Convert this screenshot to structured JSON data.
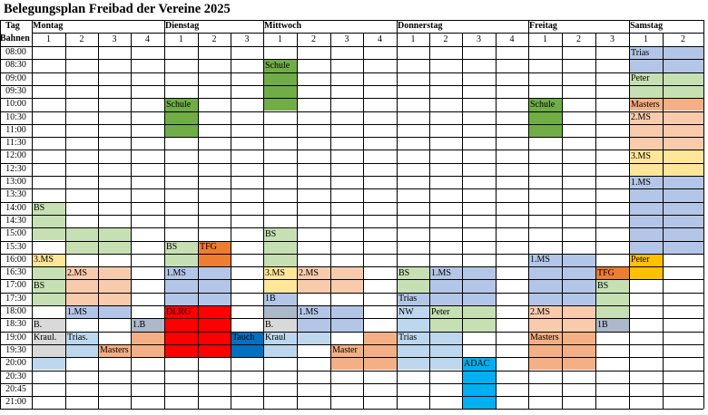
{
  "title": "Belegungsplan Freibad der Vereine 2025",
  "corner_top": "Tag",
  "corner_bottom": "Bahnen",
  "days": [
    {
      "name": "Montag",
      "lanes": 4
    },
    {
      "name": "Dienstag",
      "lanes": 3
    },
    {
      "name": "Mittwoch",
      "lanes": 4
    },
    {
      "name": "Donnerstag",
      "lanes": 4
    },
    {
      "name": "Freitag",
      "lanes": 3
    },
    {
      "name": "Samstag",
      "lanes": 2
    }
  ],
  "times": [
    "08:00",
    "08:30",
    "09:00",
    "09:30",
    "10:00",
    "10:30",
    "11:00",
    "11:30",
    "12:00",
    "12:30",
    "13:00",
    "13:30",
    "14:00",
    "14:30",
    "15:00",
    "15:30",
    "16:00",
    "16:30",
    "17:00",
    "17:30",
    "18:00",
    "18:30",
    "19:00",
    "19:30",
    "20:00",
    "20:30",
    "20:45",
    "21:00"
  ],
  "colors": {
    "green_dark": "#70ad47",
    "green_light": "#c6e0b4",
    "blue": "#b4c6e7",
    "blue_light": "#bdd7ee",
    "peach": "#f8cbad",
    "orange": "#f4b084",
    "orange_dark": "#ed7d31",
    "yellow": "#ffe699",
    "gold": "#ffc000",
    "red": "#ff0000",
    "navy": "#0070c0",
    "sky": "#00b0f0",
    "grey": "#d9d9d9",
    "slate": "#adb9ca"
  },
  "bookings": [
    {
      "day": 0,
      "lane": 0,
      "start": 12,
      "end": 15,
      "color": "green_light",
      "label": "BS"
    },
    {
      "day": 0,
      "lane": 1,
      "start": 14,
      "end": 16,
      "color": "green_light",
      "label": ""
    },
    {
      "day": 0,
      "lane": 2,
      "start": 14,
      "end": 16,
      "color": "green_light",
      "label": ""
    },
    {
      "day": 0,
      "lane": 0,
      "start": 16,
      "end": 17,
      "color": "yellow",
      "label": "3.MS"
    },
    {
      "day": 0,
      "lane": 0,
      "start": 17,
      "end": 18,
      "color": "green_light",
      "label": ""
    },
    {
      "day": 0,
      "lane": 0,
      "start": 18,
      "end": 20,
      "color": "green_light",
      "label": "BS"
    },
    {
      "day": 0,
      "lane": 1,
      "start": 17,
      "end": 20,
      "color": "peach",
      "label": "2.MS"
    },
    {
      "day": 0,
      "lane": 2,
      "start": 17,
      "end": 20,
      "color": "peach",
      "label": ""
    },
    {
      "day": 0,
      "lane": 1,
      "start": 20,
      "end": 21,
      "color": "blue",
      "label": "1.MS"
    },
    {
      "day": 0,
      "lane": 2,
      "start": 20,
      "end": 21,
      "color": "blue",
      "label": ""
    },
    {
      "day": 0,
      "lane": 0,
      "start": 21,
      "end": 22,
      "color": "grey",
      "label": "B."
    },
    {
      "day": 0,
      "lane": 3,
      "start": 21,
      "end": 22,
      "color": "slate",
      "label": "1.B"
    },
    {
      "day": 0,
      "lane": 0,
      "start": 22,
      "end": 23,
      "color": "grey",
      "label": "Kraul."
    },
    {
      "day": 0,
      "lane": 1,
      "start": 22,
      "end": 24,
      "color": "blue_light",
      "label": "Trias."
    },
    {
      "day": 0,
      "lane": 0,
      "start": 23,
      "end": 24,
      "color": "grey",
      "label": ""
    },
    {
      "day": 0,
      "lane": 2,
      "start": 23,
      "end": 24,
      "color": "orange",
      "label": "Masters"
    },
    {
      "day": 0,
      "lane": 3,
      "start": 22,
      "end": 24,
      "color": "orange",
      "label": ""
    },
    {
      "day": 0,
      "lane": 0,
      "start": 24,
      "end": 25,
      "color": "blue_light",
      "label": ""
    },
    {
      "day": 1,
      "lane": 0,
      "start": 4,
      "end": 7,
      "color": "green_dark",
      "label": "Schule"
    },
    {
      "day": 1,
      "lane": 0,
      "start": 15,
      "end": 17,
      "color": "green_light",
      "label": "BS"
    },
    {
      "day": 1,
      "lane": 1,
      "start": 15,
      "end": 17,
      "color": "orange_dark",
      "label": "TFG"
    },
    {
      "day": 1,
      "lane": 0,
      "start": 17,
      "end": 20,
      "color": "blue",
      "label": "1.MS"
    },
    {
      "day": 1,
      "lane": 1,
      "start": 17,
      "end": 20,
      "color": "blue",
      "label": ""
    },
    {
      "day": 1,
      "lane": 0,
      "start": 20,
      "end": 24,
      "color": "red",
      "label": "DLRG"
    },
    {
      "day": 1,
      "lane": 1,
      "start": 20,
      "end": 24,
      "color": "red",
      "label": ""
    },
    {
      "day": 1,
      "lane": 2,
      "start": 22,
      "end": 24,
      "color": "navy",
      "label": "Tauch"
    },
    {
      "day": 2,
      "lane": 0,
      "start": 1,
      "end": 5,
      "color": "green_dark",
      "label": "Schule"
    },
    {
      "day": 2,
      "lane": 0,
      "start": 14,
      "end": 17,
      "color": "green_light",
      "label": "BS"
    },
    {
      "day": 2,
      "lane": 0,
      "start": 17,
      "end": 19,
      "color": "yellow",
      "label": "3.MS"
    },
    {
      "day": 2,
      "lane": 1,
      "start": 17,
      "end": 19,
      "color": "peach",
      "label": "2.MS"
    },
    {
      "day": 2,
      "lane": 2,
      "start": 17,
      "end": 19,
      "color": "peach",
      "label": ""
    },
    {
      "day": 2,
      "lane": 0,
      "start": 19,
      "end": 20,
      "color": "blue",
      "label": "1B"
    },
    {
      "day": 2,
      "lane": 0,
      "start": 20,
      "end": 21,
      "color": "slate",
      "label": ""
    },
    {
      "day": 2,
      "lane": 1,
      "start": 20,
      "end": 22,
      "color": "blue",
      "label": "1.MS"
    },
    {
      "day": 2,
      "lane": 2,
      "start": 20,
      "end": 22,
      "color": "blue",
      "label": ""
    },
    {
      "day": 2,
      "lane": 0,
      "start": 21,
      "end": 22,
      "color": "grey",
      "label": "B."
    },
    {
      "day": 2,
      "lane": 0,
      "start": 22,
      "end": 24,
      "color": "blue_light",
      "label": "Kraul"
    },
    {
      "day": 2,
      "lane": 1,
      "start": 22,
      "end": 23,
      "color": "blue_light",
      "label": ""
    },
    {
      "day": 2,
      "lane": 2,
      "start": 23,
      "end": 25,
      "color": "orange",
      "label": "Master"
    },
    {
      "day": 2,
      "lane": 3,
      "start": 22,
      "end": 25,
      "color": "orange",
      "label": ""
    },
    {
      "day": 3,
      "lane": 0,
      "start": 17,
      "end": 19,
      "color": "green_light",
      "label": "BS"
    },
    {
      "day": 3,
      "lane": 1,
      "start": 17,
      "end": 20,
      "color": "blue",
      "label": "1.MS"
    },
    {
      "day": 3,
      "lane": 2,
      "start": 17,
      "end": 20,
      "color": "blue",
      "label": ""
    },
    {
      "day": 3,
      "lane": 0,
      "start": 19,
      "end": 20,
      "color": "blue",
      "label": "Trias"
    },
    {
      "day": 3,
      "lane": 0,
      "start": 20,
      "end": 22,
      "color": "blue_light",
      "label": "NW"
    },
    {
      "day": 3,
      "lane": 1,
      "start": 20,
      "end": 22,
      "color": "green_light",
      "label": "Peter"
    },
    {
      "day": 3,
      "lane": 2,
      "start": 20,
      "end": 22,
      "color": "green_light",
      "label": ""
    },
    {
      "day": 3,
      "lane": 0,
      "start": 22,
      "end": 25,
      "color": "blue_light",
      "label": "Trias"
    },
    {
      "day": 3,
      "lane": 1,
      "start": 22,
      "end": 25,
      "color": "blue_light",
      "label": ""
    },
    {
      "day": 3,
      "lane": 2,
      "start": 24,
      "end": 28,
      "color": "sky",
      "label": "ADAC"
    },
    {
      "day": 4,
      "lane": 0,
      "start": 4,
      "end": 7,
      "color": "green_dark",
      "label": "Schule"
    },
    {
      "day": 4,
      "lane": 0,
      "start": 16,
      "end": 20,
      "color": "blue",
      "label": "1.MS"
    },
    {
      "day": 4,
      "lane": 1,
      "start": 16,
      "end": 20,
      "color": "blue",
      "label": ""
    },
    {
      "day": 4,
      "lane": 2,
      "start": 17,
      "end": 18,
      "color": "orange_dark",
      "label": "TFG"
    },
    {
      "day": 4,
      "lane": 2,
      "start": 18,
      "end": 20,
      "color": "green_light",
      "label": "BS"
    },
    {
      "day": 4,
      "lane": 0,
      "start": 20,
      "end": 22,
      "color": "peach",
      "label": "2.MS"
    },
    {
      "day": 4,
      "lane": 1,
      "start": 20,
      "end": 22,
      "color": "peach",
      "label": ""
    },
    {
      "day": 4,
      "lane": 2,
      "start": 20,
      "end": 21,
      "color": "green_light",
      "label": ""
    },
    {
      "day": 4,
      "lane": 2,
      "start": 21,
      "end": 22,
      "color": "slate",
      "label": "1B"
    },
    {
      "day": 4,
      "lane": 0,
      "start": 22,
      "end": 25,
      "color": "orange",
      "label": "Masters"
    },
    {
      "day": 4,
      "lane": 1,
      "start": 22,
      "end": 25,
      "color": "orange",
      "label": ""
    },
    {
      "day": 5,
      "lane": 0,
      "start": 0,
      "end": 2,
      "color": "blue",
      "label": "Trias"
    },
    {
      "day": 5,
      "lane": 1,
      "start": 0,
      "end": 2,
      "color": "blue",
      "label": ""
    },
    {
      "day": 5,
      "lane": 0,
      "start": 2,
      "end": 4,
      "color": "green_light",
      "label": "Peter"
    },
    {
      "day": 5,
      "lane": 1,
      "start": 2,
      "end": 4,
      "color": "green_light",
      "label": ""
    },
    {
      "day": 5,
      "lane": 0,
      "start": 4,
      "end": 5,
      "color": "orange",
      "label": "Masters"
    },
    {
      "day": 5,
      "lane": 1,
      "start": 4,
      "end": 5,
      "color": "orange",
      "label": ""
    },
    {
      "day": 5,
      "lane": 0,
      "start": 5,
      "end": 8,
      "color": "peach",
      "label": "2.MS"
    },
    {
      "day": 5,
      "lane": 1,
      "start": 5,
      "end": 8,
      "color": "peach",
      "label": ""
    },
    {
      "day": 5,
      "lane": 0,
      "start": 8,
      "end": 10,
      "color": "yellow",
      "label": "3.MS"
    },
    {
      "day": 5,
      "lane": 1,
      "start": 8,
      "end": 10,
      "color": "yellow",
      "label": ""
    },
    {
      "day": 5,
      "lane": 0,
      "start": 10,
      "end": 16,
      "color": "blue",
      "label": "1.MS"
    },
    {
      "day": 5,
      "lane": 1,
      "start": 10,
      "end": 16,
      "color": "blue",
      "label": ""
    },
    {
      "day": 5,
      "lane": 0,
      "start": 16,
      "end": 18,
      "color": "gold",
      "label": "Peter"
    }
  ]
}
